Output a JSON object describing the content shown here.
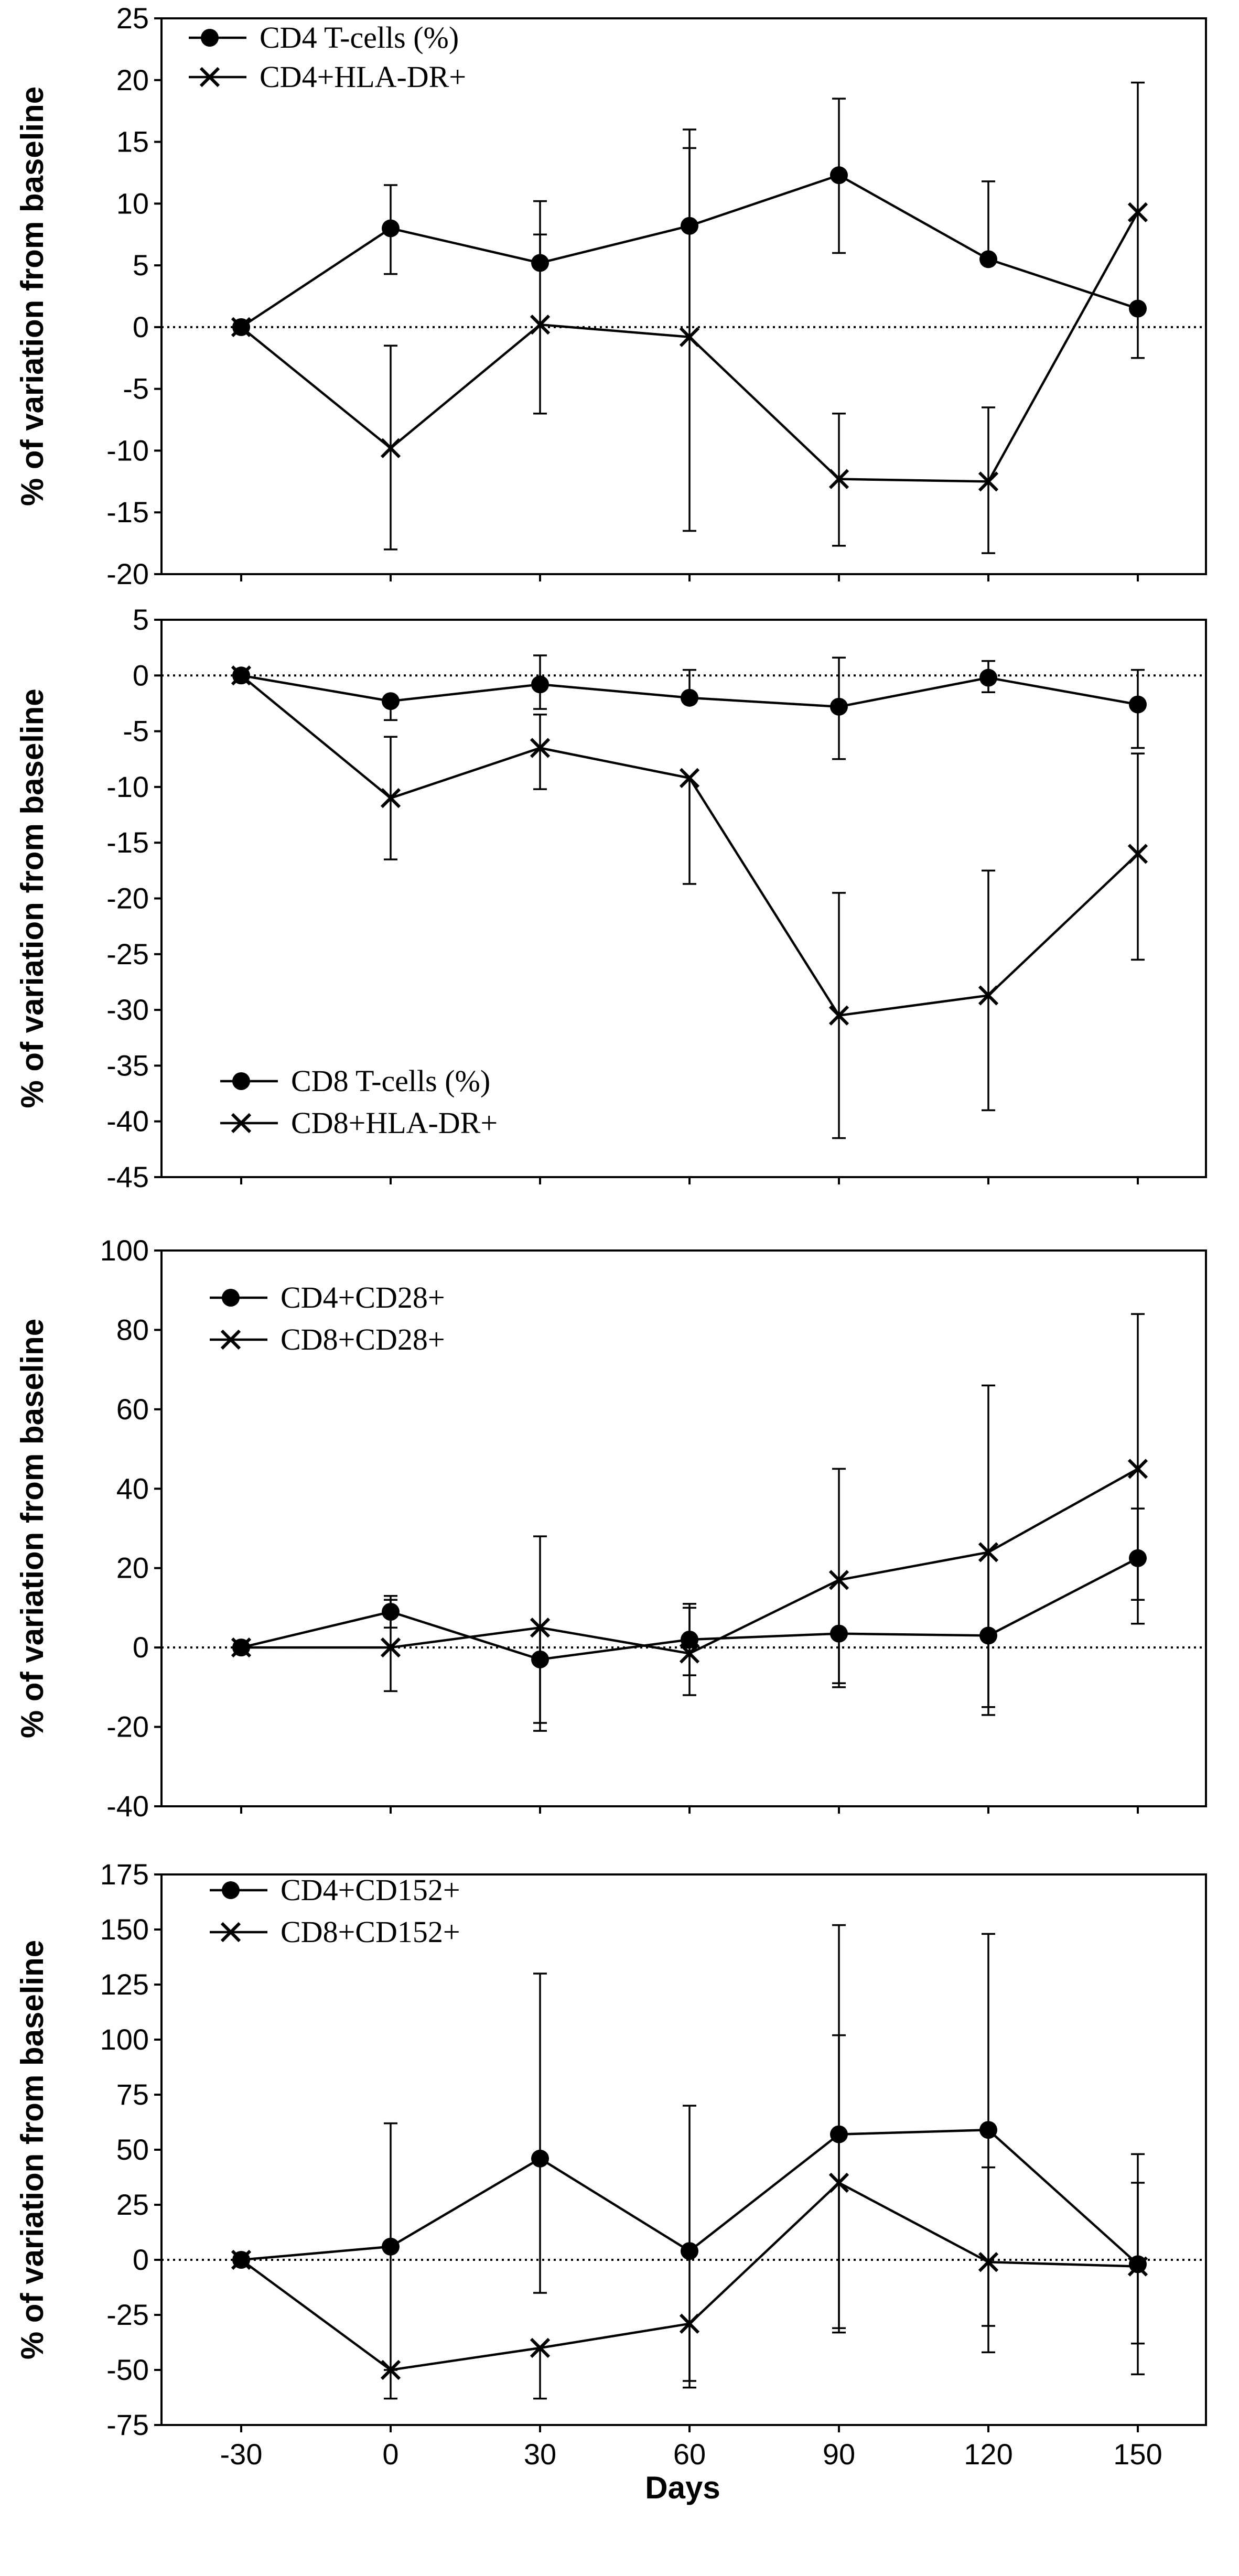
{
  "figure": {
    "xlabel": "Days"
  },
  "chart_data": [
    {
      "type": "line",
      "title": "",
      "xlabel": "Days",
      "ylabel": "% of variation from baseline",
      "x": [
        -30,
        0,
        30,
        60,
        90,
        120,
        150
      ],
      "x_tick_labels": [
        "-30",
        "0",
        "30",
        "60",
        "90",
        "120",
        "150"
      ],
      "ylim": [
        -20,
        25
      ],
      "y_ticks": [
        -20,
        -15,
        -10,
        -5,
        0,
        5,
        10,
        15,
        20,
        25
      ],
      "y_tick_labels": [
        "-20",
        "-15",
        "-10",
        "-5",
        "0",
        "5",
        "10",
        "15",
        "20",
        "25"
      ],
      "baseline": 0,
      "legend_position": "top-left",
      "series": [
        {
          "name": "CD4 T-cells (%)",
          "marker": "circle",
          "values": [
            0,
            8,
            5.2,
            8.2,
            12.3,
            5.5,
            1.5
          ],
          "err_hi": [
            null,
            11.5,
            10.2,
            16,
            18.5,
            11.8,
            null
          ],
          "err_lo": [
            null,
            4.3,
            null,
            null,
            6,
            null,
            null
          ]
        },
        {
          "name": "CD4+HLA-DR+",
          "marker": "x",
          "values": [
            0,
            -9.8,
            0.2,
            -0.8,
            -12.3,
            -12.5,
            9.3
          ],
          "err_hi": [
            null,
            -1.5,
            7.5,
            14.5,
            -7,
            -6.5,
            19.8
          ],
          "err_lo": [
            null,
            -18,
            -7,
            -16.5,
            -17.7,
            -18.3,
            -2.5
          ]
        }
      ]
    },
    {
      "type": "line",
      "title": "",
      "xlabel": "Days",
      "ylabel": "% of variation from baseline",
      "x": [
        -30,
        0,
        30,
        60,
        90,
        120,
        150
      ],
      "x_tick_labels": [
        "-30",
        "0",
        "30",
        "60",
        "90",
        "120",
        "150"
      ],
      "ylim": [
        -45,
        5
      ],
      "y_ticks": [
        -45,
        -40,
        -35,
        -30,
        -25,
        -20,
        -15,
        -10,
        -5,
        0,
        5
      ],
      "y_tick_labels": [
        "-45",
        "-40",
        "-35",
        "-30",
        "-25",
        "-20",
        "-15",
        "-10",
        "-5",
        "0",
        "5"
      ],
      "baseline": 0,
      "legend_position": "bottom-left",
      "series": [
        {
          "name": "CD8 T-cells (%)",
          "marker": "circle",
          "values": [
            0,
            -2.3,
            -0.8,
            -2,
            -2.8,
            -0.2,
            -2.6
          ],
          "err_hi": [
            null,
            null,
            1.8,
            0.5,
            1.6,
            1.3,
            0.5
          ],
          "err_lo": [
            null,
            -4,
            -3,
            -2.3,
            -7.5,
            -1.5,
            -6.5
          ]
        },
        {
          "name": "CD8+HLA-DR+",
          "marker": "x",
          "values": [
            0,
            -11,
            -6.5,
            -9.2,
            -30.5,
            -28.7,
            -16
          ],
          "err_hi": [
            null,
            -5.5,
            -3.5,
            null,
            -19.5,
            -17.5,
            -7
          ],
          "err_lo": [
            null,
            -16.5,
            -10.2,
            -18.7,
            -41.5,
            -39,
            -25.5
          ]
        }
      ]
    },
    {
      "type": "line",
      "title": "",
      "xlabel": "Days",
      "ylabel": "% of variation from baseline",
      "x": [
        -30,
        0,
        30,
        60,
        90,
        120,
        150
      ],
      "x_tick_labels": [
        "-30",
        "0",
        "30",
        "60",
        "90",
        "120",
        "150"
      ],
      "ylim": [
        -40,
        100
      ],
      "y_ticks": [
        -40,
        -20,
        0,
        20,
        40,
        60,
        80,
        100
      ],
      "y_tick_labels": [
        "-40",
        "-20",
        "0",
        "20",
        "40",
        "60",
        "80",
        "100"
      ],
      "baseline": 0,
      "legend_position": "top-left",
      "series": [
        {
          "name": "CD4+CD28+",
          "marker": "circle",
          "values": [
            0,
            9,
            -3,
            2,
            3.5,
            3,
            22.5
          ],
          "err_hi": [
            null,
            13,
            28,
            10,
            45,
            66,
            35
          ],
          "err_lo": [
            null,
            5,
            -19,
            -7,
            -10,
            -15,
            6
          ]
        },
        {
          "name": "CD8+CD28+",
          "marker": "x",
          "values": [
            0,
            0,
            5,
            -1.5,
            17,
            24,
            45
          ],
          "err_hi": [
            null,
            12,
            null,
            11,
            null,
            null,
            84
          ],
          "err_lo": [
            null,
            -11,
            -21,
            -12,
            -9,
            -17,
            12
          ]
        }
      ]
    },
    {
      "type": "line",
      "title": "",
      "xlabel": "Days",
      "ylabel": "% of variation from baseline",
      "x": [
        -30,
        0,
        30,
        60,
        90,
        120,
        150
      ],
      "x_tick_labels": [
        "-30",
        "0",
        "30",
        "60",
        "90",
        "120",
        "150"
      ],
      "ylim": [
        -75,
        175
      ],
      "y_ticks": [
        -75,
        -50,
        -25,
        0,
        25,
        50,
        75,
        100,
        125,
        150,
        175
      ],
      "y_tick_labels": [
        "-75",
        "-50",
        "-25",
        "0",
        "25",
        "50",
        "75",
        "100",
        "125",
        "150",
        "175"
      ],
      "baseline": 0,
      "legend_position": "top-left",
      "series": [
        {
          "name": "CD4+CD152+",
          "marker": "circle",
          "values": [
            0,
            6,
            46,
            4,
            57,
            59,
            -2
          ],
          "err_hi": [
            null,
            62,
            130,
            70,
            152,
            148,
            48
          ],
          "err_lo": [
            null,
            -50,
            -15,
            -55,
            -33,
            -42,
            -52
          ]
        },
        {
          "name": "CD8+CD152+",
          "marker": "x",
          "values": [
            0,
            -50,
            -40,
            -29,
            35,
            -1,
            -3
          ],
          "err_hi": [
            null,
            null,
            null,
            null,
            102,
            42,
            35
          ],
          "err_lo": [
            null,
            -63,
            -63,
            -58,
            -31,
            -30,
            -38
          ]
        }
      ]
    }
  ]
}
